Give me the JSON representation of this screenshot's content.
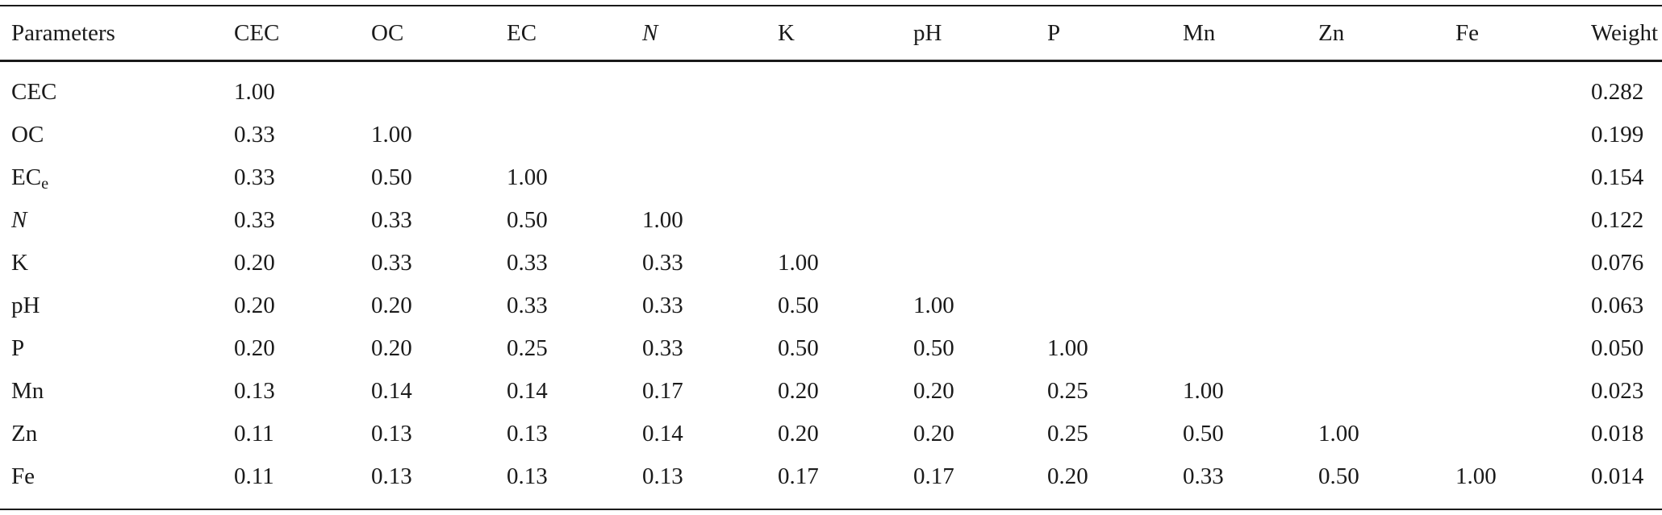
{
  "table": {
    "header": [
      "Parameters",
      "CEC",
      "OC",
      "EC",
      "N",
      "K",
      "pH",
      "P",
      "Mn",
      "Zn",
      "Fe",
      "Weight"
    ],
    "rows": [
      {
        "label": "CEC",
        "label_sub": "",
        "cells": [
          "1.00",
          "",
          "",
          "",
          "",
          "",
          "",
          "",
          "",
          ""
        ],
        "weight": "0.282"
      },
      {
        "label": "OC",
        "label_sub": "",
        "cells": [
          "0.33",
          "1.00",
          "",
          "",
          "",
          "",
          "",
          "",
          "",
          ""
        ],
        "weight": "0.199"
      },
      {
        "label": "EC",
        "label_sub": "e",
        "cells": [
          "0.33",
          "0.50",
          "1.00",
          "",
          "",
          "",
          "",
          "",
          "",
          ""
        ],
        "weight": "0.154"
      },
      {
        "label": "N",
        "label_sub": "",
        "cells": [
          "0.33",
          "0.33",
          "0.50",
          "1.00",
          "",
          "",
          "",
          "",
          "",
          ""
        ],
        "weight": "0.122"
      },
      {
        "label": "K",
        "label_sub": "",
        "cells": [
          "0.20",
          "0.33",
          "0.33",
          "0.33",
          "1.00",
          "",
          "",
          "",
          "",
          ""
        ],
        "weight": "0.076"
      },
      {
        "label": "pH",
        "label_sub": "",
        "cells": [
          "0.20",
          "0.20",
          "0.33",
          "0.33",
          "0.50",
          "1.00",
          "",
          "",
          "",
          ""
        ],
        "weight": "0.063"
      },
      {
        "label": "P",
        "label_sub": "",
        "cells": [
          "0.20",
          "0.20",
          "0.25",
          "0.33",
          "0.50",
          "0.50",
          "1.00",
          "",
          "",
          ""
        ],
        "weight": "0.050"
      },
      {
        "label": "Mn",
        "label_sub": "",
        "cells": [
          "0.13",
          "0.14",
          "0.14",
          "0.17",
          "0.20",
          "0.20",
          "0.25",
          "1.00",
          "",
          ""
        ],
        "weight": "0.023"
      },
      {
        "label": "Zn",
        "label_sub": "",
        "cells": [
          "0.11",
          "0.13",
          "0.13",
          "0.14",
          "0.20",
          "0.20",
          "0.25",
          "0.50",
          "1.00",
          ""
        ],
        "weight": "0.018"
      },
      {
        "label": "Fe",
        "label_sub": "",
        "cells": [
          "0.11",
          "0.13",
          "0.13",
          "0.13",
          "0.17",
          "0.17",
          "0.20",
          "0.33",
          "0.50",
          "1.00"
        ],
        "weight": "0.014"
      }
    ]
  }
}
